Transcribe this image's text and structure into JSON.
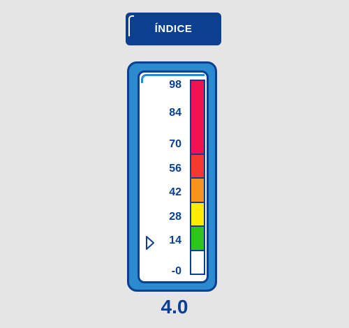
{
  "header": {
    "title": "ÍNDICE"
  },
  "gauge": {
    "ticks": [
      {
        "label": "98"
      },
      {
        "label": "84"
      },
      {
        "label": "70"
      },
      {
        "label": "56"
      },
      {
        "label": "42"
      },
      {
        "label": "28"
      },
      {
        "label": "14"
      },
      {
        "label": "-0"
      }
    ],
    "segments": [
      {
        "name": "magenta",
        "from": 56,
        "to": 98,
        "color": "#f0144e"
      },
      {
        "name": "red",
        "from": 42,
        "to": 56,
        "color": "#f23a32"
      },
      {
        "name": "orange",
        "from": 28,
        "to": 42,
        "color": "#f7941d"
      },
      {
        "name": "yellow",
        "from": 14,
        "to": 28,
        "color": "#ffec00"
      },
      {
        "name": "green",
        "from": 0,
        "to": 14,
        "color": "#2ec51a"
      },
      {
        "name": "white",
        "from": -14,
        "to": 0,
        "color": "#ffffff"
      }
    ],
    "pointer_icon": "triangle-pointer-icon",
    "value": 4.0,
    "value_text": "4.0"
  },
  "colors": {
    "navy": "#0b3f8f",
    "blue": "#2b8ad0",
    "background": "#e5e5e5"
  }
}
